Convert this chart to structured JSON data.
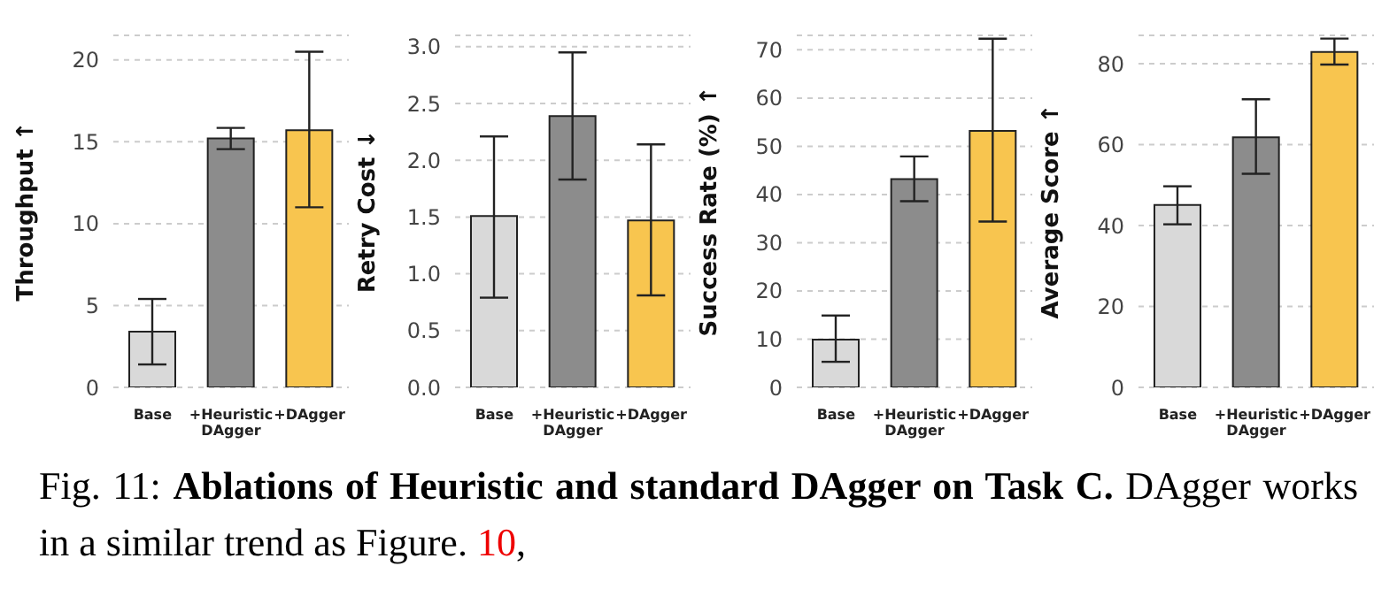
{
  "chart_data": [
    {
      "type": "bar",
      "ylabel": "Throughput ↑",
      "categories": [
        "Base",
        "+Heuristic DAgger",
        "+DAgger"
      ],
      "values": [
        3.4,
        15.2,
        15.7
      ],
      "colors": [
        "#d9d9d9",
        "#8c8c8c",
        "#f8c54f"
      ],
      "errors": [
        [
          1.4,
          5.4
        ],
        [
          14.55,
          15.85
        ],
        [
          11.0,
          20.5
        ]
      ],
      "ylim": [
        0,
        21.5
      ],
      "yticks": [
        0,
        5,
        10,
        15,
        20
      ],
      "grid": "y",
      "annotations": [
        "Fig. 11:",
        "Ablations of Heuristic and standard DAgger on Task C.",
        "DAgger works in a similar trend as Figure.",
        "10",
        ","
      ]
    },
    {
      "type": "bar",
      "ylabel": "Retry Cost ↓",
      "categories": [
        "Base",
        "+Heuristic DAgger",
        "+DAgger"
      ],
      "values": [
        1.51,
        2.39,
        1.47
      ],
      "colors": [
        "#d9d9d9",
        "#8c8c8c",
        "#f8c54f"
      ],
      "errors": [
        [
          0.79,
          2.21
        ],
        [
          1.83,
          2.95
        ],
        [
          0.81,
          2.14
        ]
      ],
      "ylim": [
        0,
        3.1
      ],
      "yticks": [
        {
          "value": 0,
          "label": "0.0"
        },
        0.5,
        {
          "value": 1,
          "label": "1.0"
        },
        1.5,
        {
          "value": 2,
          "label": "2.0"
        },
        2.5,
        {
          "value": 3,
          "label": "3.0"
        }
      ],
      "grid": "y"
    },
    {
      "type": "bar",
      "ylabel": "Success Rate (%) ↑",
      "categories": [
        "Base",
        "+Heuristic DAgger",
        "+DAgger"
      ],
      "values": [
        9.9,
        43.2,
        53.2
      ],
      "colors": [
        "#d9d9d9",
        "#8c8c8c",
        "#f8c54f"
      ],
      "errors": [
        [
          5.3,
          14.9
        ],
        [
          38.6,
          47.9
        ],
        [
          34.4,
          72.3
        ]
      ],
      "ylim": [
        0,
        73
      ],
      "yticks": [
        0,
        10,
        20,
        30,
        40,
        50,
        60,
        70
      ],
      "grid": "y"
    },
    {
      "type": "bar",
      "ylabel": "Average Score ↑",
      "categories": [
        "Base",
        "+Heuristic DAgger",
        "+DAgger"
      ],
      "values": [
        45.1,
        61.8,
        82.9
      ],
      "colors": [
        "#d9d9d9",
        "#8c8c8c",
        "#f8c54f"
      ],
      "errors": [
        [
          40.3,
          49.7
        ],
        [
          52.8,
          71.2
        ],
        [
          79.8,
          86.2
        ]
      ],
      "ylim": [
        0,
        87
      ],
      "yticks": [
        0,
        20,
        40,
        60,
        80
      ],
      "grid": "y"
    }
  ]
}
